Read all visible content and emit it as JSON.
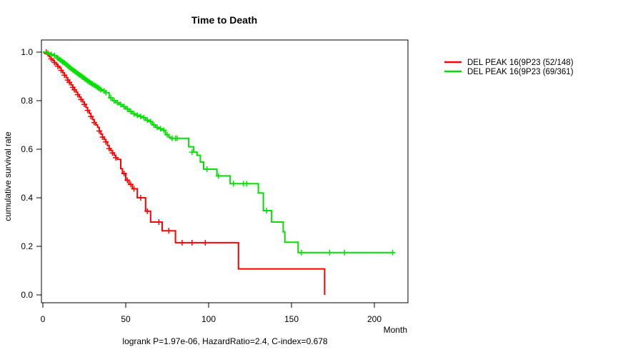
{
  "title": "Time to Death",
  "axes": {
    "x_label": "Month",
    "y_label": "cumulative survival rate"
  },
  "caption": "logrank P=1.97e-06, HazardRatio=2.4, C-index=0.678",
  "colors": {
    "series_red": "#ff0000",
    "series_green": "#00e000",
    "axis": "#000000"
  },
  "chart_data": {
    "type": "line",
    "subtype": "kaplan_meier_step",
    "title": "Time to Death",
    "xlabel": "Month",
    "ylabel": "cumulative survival rate",
    "xlim": [
      0,
      220
    ],
    "ylim": [
      0.0,
      1.0
    ],
    "x_ticks": [
      0,
      50,
      100,
      150,
      200
    ],
    "y_ticks": [
      "1.0",
      "0.8",
      "0.6",
      "0.4",
      "0.2",
      "0.0"
    ],
    "grid": false,
    "legend_position": "right-outside",
    "annotation": "logrank P=1.97e-06, HazardRatio=2.4, C-index=0.678",
    "series": [
      {
        "name": "DEL PEAK 16(9P23 (52/148)",
        "events_over_total": "52/148",
        "color": "#ff0000",
        "points": [
          [
            0,
            1.0
          ],
          [
            1,
            0.995
          ],
          [
            3,
            0.985
          ],
          [
            4,
            0.98
          ],
          [
            5,
            0.972
          ],
          [
            6,
            0.965
          ],
          [
            7,
            0.957
          ],
          [
            8,
            0.95
          ],
          [
            9,
            0.942
          ],
          [
            10,
            0.935
          ],
          [
            11,
            0.925
          ],
          [
            12,
            0.915
          ],
          [
            13,
            0.905
          ],
          [
            14,
            0.895
          ],
          [
            15,
            0.885
          ],
          [
            16,
            0.875
          ],
          [
            17,
            0.865
          ],
          [
            18,
            0.855
          ],
          [
            19,
            0.845
          ],
          [
            20,
            0.835
          ],
          [
            21,
            0.825
          ],
          [
            22,
            0.815
          ],
          [
            23,
            0.805
          ],
          [
            24,
            0.795
          ],
          [
            25,
            0.785
          ],
          [
            26,
            0.772
          ],
          [
            27,
            0.76
          ],
          [
            28,
            0.748
          ],
          [
            29,
            0.735
          ],
          [
            30,
            0.722
          ],
          [
            31,
            0.71
          ],
          [
            32,
            0.7
          ],
          [
            33,
            0.69
          ],
          [
            34,
            0.675
          ],
          [
            35,
            0.662
          ],
          [
            36,
            0.65
          ],
          [
            37,
            0.64
          ],
          [
            38,
            0.63
          ],
          [
            39,
            0.615
          ],
          [
            40,
            0.603
          ],
          [
            41,
            0.595
          ],
          [
            42,
            0.585
          ],
          [
            43,
            0.575
          ],
          [
            44,
            0.565
          ],
          [
            45,
            0.558
          ],
          [
            47,
            0.52
          ],
          [
            48,
            0.5
          ],
          [
            50,
            0.472
          ],
          [
            52,
            0.455
          ],
          [
            54,
            0.437
          ],
          [
            57,
            0.4
          ],
          [
            62,
            0.345
          ],
          [
            65,
            0.3
          ],
          [
            72,
            0.264
          ],
          [
            80,
            0.215
          ],
          [
            118,
            0.107
          ],
          [
            170,
            0.0
          ]
        ],
        "censors": [
          [
            2,
            1.0
          ],
          [
            5,
            0.972
          ],
          [
            7,
            0.957
          ],
          [
            9,
            0.942
          ],
          [
            11,
            0.925
          ],
          [
            13,
            0.905
          ],
          [
            15,
            0.885
          ],
          [
            16,
            0.875
          ],
          [
            18,
            0.855
          ],
          [
            19,
            0.845
          ],
          [
            21,
            0.825
          ],
          [
            23,
            0.805
          ],
          [
            25,
            0.785
          ],
          [
            27,
            0.76
          ],
          [
            29,
            0.735
          ],
          [
            31,
            0.71
          ],
          [
            34,
            0.675
          ],
          [
            36,
            0.65
          ],
          [
            38,
            0.63
          ],
          [
            40,
            0.603
          ],
          [
            42,
            0.585
          ],
          [
            44,
            0.565
          ],
          [
            49,
            0.5
          ],
          [
            51,
            0.472
          ],
          [
            53,
            0.455
          ],
          [
            55,
            0.437
          ],
          [
            59,
            0.4
          ],
          [
            63,
            0.345
          ],
          [
            70,
            0.3
          ],
          [
            76,
            0.264
          ],
          [
            84,
            0.215
          ],
          [
            90,
            0.215
          ],
          [
            98,
            0.215
          ]
        ]
      },
      {
        "name": "DEL PEAK 16(9P23 (69/361)",
        "events_over_total": "69/361",
        "color": "#00e000",
        "points": [
          [
            0,
            1.0
          ],
          [
            2,
            0.996
          ],
          [
            4,
            0.991
          ],
          [
            6,
            0.986
          ],
          [
            8,
            0.98
          ],
          [
            9,
            0.975
          ],
          [
            10,
            0.97
          ],
          [
            11,
            0.966
          ],
          [
            12,
            0.96
          ],
          [
            13,
            0.955
          ],
          [
            14,
            0.949
          ],
          [
            15,
            0.944
          ],
          [
            16,
            0.938
          ],
          [
            17,
            0.932
          ],
          [
            18,
            0.927
          ],
          [
            19,
            0.922
          ],
          [
            20,
            0.917
          ],
          [
            21,
            0.912
          ],
          [
            22,
            0.907
          ],
          [
            23,
            0.902
          ],
          [
            24,
            0.897
          ],
          [
            25,
            0.892
          ],
          [
            26,
            0.887
          ],
          [
            27,
            0.882
          ],
          [
            28,
            0.877
          ],
          [
            29,
            0.872
          ],
          [
            30,
            0.868
          ],
          [
            31,
            0.864
          ],
          [
            32,
            0.86
          ],
          [
            33,
            0.855
          ],
          [
            34,
            0.85
          ],
          [
            35,
            0.845
          ],
          [
            36,
            0.84
          ],
          [
            38,
            0.833
          ],
          [
            40,
            0.812
          ],
          [
            42,
            0.8
          ],
          [
            44,
            0.792
          ],
          [
            46,
            0.784
          ],
          [
            48,
            0.776
          ],
          [
            50,
            0.766
          ],
          [
            52,
            0.756
          ],
          [
            54,
            0.746
          ],
          [
            56,
            0.74
          ],
          [
            58,
            0.735
          ],
          [
            60,
            0.73
          ],
          [
            62,
            0.72
          ],
          [
            64,
            0.714
          ],
          [
            66,
            0.7
          ],
          [
            68,
            0.69
          ],
          [
            70,
            0.684
          ],
          [
            72,
            0.678
          ],
          [
            74,
            0.66
          ],
          [
            76,
            0.65
          ],
          [
            77,
            0.645
          ],
          [
            88,
            0.61
          ],
          [
            91,
            0.588
          ],
          [
            93,
            0.575
          ],
          [
            95,
            0.547
          ],
          [
            97,
            0.518
          ],
          [
            105,
            0.49
          ],
          [
            113,
            0.458
          ],
          [
            130,
            0.42
          ],
          [
            133,
            0.347
          ],
          [
            138,
            0.3
          ],
          [
            145,
            0.26
          ],
          [
            146,
            0.217
          ],
          [
            154,
            0.174
          ],
          [
            212,
            0.174
          ]
        ],
        "censors": [
          [
            3,
            0.996
          ],
          [
            5,
            0.991
          ],
          [
            7,
            0.986
          ],
          [
            9,
            0.975
          ],
          [
            10,
            0.97
          ],
          [
            11,
            0.966
          ],
          [
            12,
            0.96
          ],
          [
            13,
            0.955
          ],
          [
            14,
            0.949
          ],
          [
            15,
            0.944
          ],
          [
            16,
            0.938
          ],
          [
            17,
            0.932
          ],
          [
            18,
            0.927
          ],
          [
            19,
            0.922
          ],
          [
            20,
            0.917
          ],
          [
            21,
            0.912
          ],
          [
            22,
            0.907
          ],
          [
            23,
            0.902
          ],
          [
            24,
            0.897
          ],
          [
            25,
            0.892
          ],
          [
            26,
            0.887
          ],
          [
            27,
            0.882
          ],
          [
            28,
            0.877
          ],
          [
            29,
            0.872
          ],
          [
            30,
            0.868
          ],
          [
            31,
            0.864
          ],
          [
            32,
            0.86
          ],
          [
            33,
            0.855
          ],
          [
            34,
            0.85
          ],
          [
            35,
            0.845
          ],
          [
            37,
            0.84
          ],
          [
            38,
            0.833
          ],
          [
            41,
            0.812
          ],
          [
            43,
            0.8
          ],
          [
            45,
            0.792
          ],
          [
            47,
            0.784
          ],
          [
            49,
            0.776
          ],
          [
            51,
            0.766
          ],
          [
            53,
            0.756
          ],
          [
            55,
            0.746
          ],
          [
            57,
            0.74
          ],
          [
            59,
            0.735
          ],
          [
            61,
            0.73
          ],
          [
            63,
            0.72
          ],
          [
            65,
            0.714
          ],
          [
            67,
            0.7
          ],
          [
            69,
            0.69
          ],
          [
            71,
            0.684
          ],
          [
            73,
            0.678
          ],
          [
            75,
            0.66
          ],
          [
            78,
            0.645
          ],
          [
            80,
            0.645
          ],
          [
            81,
            0.645
          ],
          [
            90,
            0.588
          ],
          [
            99,
            0.518
          ],
          [
            106,
            0.49
          ],
          [
            115,
            0.458
          ],
          [
            121,
            0.458
          ],
          [
            123,
            0.458
          ],
          [
            135,
            0.347
          ],
          [
            156,
            0.174
          ],
          [
            173,
            0.174
          ],
          [
            182,
            0.174
          ],
          [
            211,
            0.174
          ]
        ]
      }
    ]
  }
}
